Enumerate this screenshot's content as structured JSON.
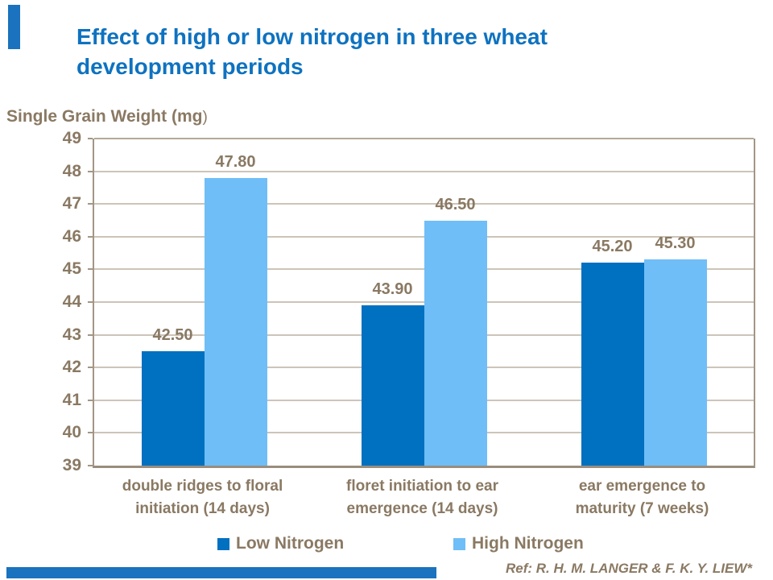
{
  "slide": {
    "title_line1": "Effect of high or low nitrogen in three wheat",
    "title_line2": "development periods",
    "axis_title_main": "Single Grain Weight (mg",
    "axis_title_paren": ")",
    "ref_text": "Ref: R. H. M. LANGER & F. K. Y. LIEW*"
  },
  "legend": {
    "low_label": "Low Nitrogen",
    "high_label": "High Nitrogen"
  },
  "colors": {
    "title_blue": "#0E72C0",
    "low_nitrogen": "#0070C0",
    "high_nitrogen": "#6FBEF7",
    "text_brown": "#8A7963",
    "gridline": "#CDC4B8",
    "frame": "#A39685",
    "accent_bar": "#1B72BE"
  },
  "chart_data": {
    "type": "bar",
    "title": "Effect of high or low nitrogen in three wheat development periods",
    "ylabel": "Single Grain Weight (mg)",
    "xlabel": "",
    "ylim": [
      39,
      49
    ],
    "yticks": [
      39,
      40,
      41,
      42,
      43,
      44,
      45,
      46,
      47,
      48,
      49
    ],
    "grid": true,
    "legend_position": "bottom",
    "categories": [
      {
        "line1": "double ridges to floral",
        "line2": "initiation (14 days)"
      },
      {
        "line1": "floret initiation to ear",
        "line2": "emergence (14 days)"
      },
      {
        "line1": "ear emergence to",
        "line2": "maturity (7 weeks)"
      }
    ],
    "series": [
      {
        "name": "Low Nitrogen",
        "values": [
          42.5,
          43.9,
          45.2
        ],
        "labels": [
          "42.50",
          "43.90",
          "45.20"
        ],
        "color_key": "low_nitrogen"
      },
      {
        "name": "High Nitrogen",
        "values": [
          47.8,
          46.5,
          45.3
        ],
        "labels": [
          "47.80",
          "46.50",
          "45.30"
        ],
        "color_key": "high_nitrogen"
      }
    ]
  }
}
